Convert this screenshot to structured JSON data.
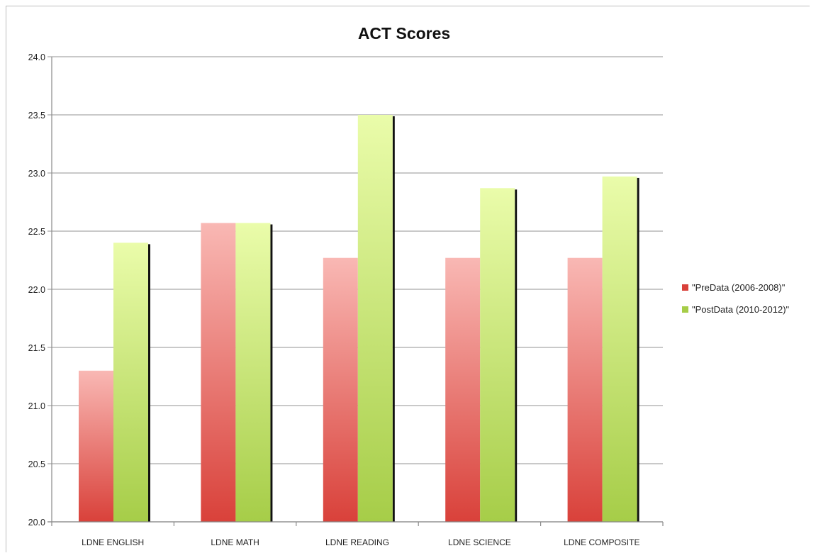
{
  "chart_data": {
    "type": "bar",
    "title": "ACT Scores",
    "xlabel": "",
    "ylabel": "",
    "categories": [
      "LDNE ENGLISH",
      "LDNE MATH",
      "LDNE READING",
      "LDNE SCIENCE",
      "LDNE COMPOSITE"
    ],
    "series": [
      {
        "name": "\"PreData (2006-2008)\"",
        "values": [
          21.3,
          22.57,
          22.27,
          22.27,
          22.27
        ],
        "color_top": "#f9b8b4",
        "color_bottom": "#d9413a"
      },
      {
        "name": "\"PostData (2010-2012)\"",
        "values": [
          22.4,
          22.57,
          23.5,
          22.87,
          22.97
        ],
        "color_top": "#eafcaa",
        "color_bottom": "#a6cd48"
      }
    ],
    "ylim": [
      20.0,
      24.0
    ],
    "yticks": [
      20.0,
      20.5,
      21.0,
      21.5,
      22.0,
      22.5,
      23.0,
      23.5,
      24.0
    ],
    "ytick_labels": [
      "20.0",
      "20.5",
      "21.0",
      "21.5",
      "22.0",
      "22.5",
      "23.0",
      "23.5",
      "24.0"
    ],
    "grid": true,
    "legend_position": "right"
  }
}
